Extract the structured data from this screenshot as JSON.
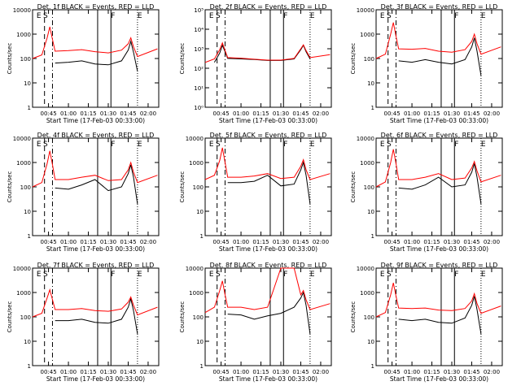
{
  "common": {
    "x_tick_labels": [
      "00:45",
      "01:00",
      "01:15",
      "01:30",
      "01:45",
      "02:00"
    ],
    "xlabel": "Start Time (17-Feb-03 00:33:00)",
    "ylabel": "Counts/sec",
    "series_colors": {
      "events": "#000000",
      "lld": "#ff0000"
    },
    "marker_labels": [
      "E",
      "S",
      "F",
      "E"
    ]
  },
  "chart_data": [
    {
      "type": "line",
      "title": "Det. 1f BLACK = Events, RED = LLD",
      "y_scale": "log",
      "ylim": [
        1,
        10000
      ],
      "y_tick_labels": [
        "1",
        "10",
        "100",
        "1000",
        "10000"
      ],
      "xlim": [
        "00:33",
        "02:08"
      ],
      "series": [
        {
          "x": [
            "00:33",
            "00:40",
            "00:44",
            "00:46",
            "00:48",
            "00:50",
            "01:00",
            "01:10",
            "01:20",
            "01:30",
            "01:40",
            "01:45",
            "01:47",
            "01:49",
            "01:52",
            "02:07"
          ],
          "values": [
            null,
            null,
            null,
            null,
            null,
            65,
            70,
            80,
            60,
            55,
            80,
            220,
            500,
            180,
            30,
            null
          ]
        },
        {
          "x": [
            "00:33",
            "00:40",
            "00:44",
            "00:46",
            "00:48",
            "00:50",
            "01:00",
            "01:10",
            "01:20",
            "01:30",
            "01:40",
            "01:45",
            "01:47",
            "01:49",
            "01:52",
            "02:07"
          ],
          "values": [
            100,
            140,
            700,
            2000,
            600,
            200,
            210,
            230,
            190,
            170,
            220,
            400,
            700,
            300,
            120,
            250
          ]
        }
      ]
    },
    {
      "type": "line",
      "title": "Det. 2f BLACK = Events, RED = LLD",
      "y_scale": "log",
      "ylim": [
        1,
        100000
      ],
      "y_tick_labels": [
        "10⁰",
        "10¹",
        "10²",
        "10³",
        "10⁴",
        "10⁵"
      ],
      "xlim": [
        "00:33",
        "02:08"
      ],
      "series": [
        {
          "x": [
            "00:33",
            "00:40",
            "00:44",
            "00:46",
            "00:48",
            "00:50",
            "01:00",
            "01:10",
            "01:20",
            "01:30",
            "01:40",
            "01:45",
            "01:47",
            "01:49",
            "01:52",
            "02:07"
          ],
          "values": [
            null,
            200,
            600,
            1500,
            700,
            320,
            300,
            280,
            250,
            250,
            300,
            900,
            1500,
            700,
            300,
            null
          ]
        },
        {
          "x": [
            "00:33",
            "00:40",
            "00:44",
            "00:46",
            "00:48",
            "00:50",
            "01:00",
            "01:10",
            "01:20",
            "01:30",
            "01:40",
            "01:45",
            "01:47",
            "01:49",
            "01:52",
            "02:07"
          ],
          "values": [
            200,
            300,
            900,
            2000,
            800,
            350,
            330,
            290,
            260,
            260,
            320,
            1000,
            1600,
            800,
            350,
            500
          ]
        }
      ]
    },
    {
      "type": "line",
      "title": "Det. 3f BLACK = Events, RED = LLD",
      "y_scale": "log",
      "ylim": [
        1,
        10000
      ],
      "y_tick_labels": [
        "1",
        "10",
        "100",
        "1000",
        "10000"
      ],
      "xlim": [
        "00:33",
        "02:08"
      ],
      "series": [
        {
          "x": [
            "00:33",
            "00:40",
            "00:44",
            "00:46",
            "00:48",
            "00:50",
            "01:00",
            "01:10",
            "01:20",
            "01:30",
            "01:40",
            "01:45",
            "01:47",
            "01:49",
            "01:52",
            "02:07"
          ],
          "values": [
            null,
            null,
            null,
            null,
            null,
            80,
            70,
            90,
            70,
            60,
            90,
            300,
            700,
            200,
            20,
            null
          ]
        },
        {
          "x": [
            "00:33",
            "00:40",
            "00:44",
            "00:46",
            "00:48",
            "00:50",
            "01:00",
            "01:10",
            "01:20",
            "01:30",
            "01:40",
            "01:45",
            "01:47",
            "01:49",
            "01:52",
            "02:07"
          ],
          "values": [
            100,
            150,
            1000,
            3000,
            800,
            250,
            240,
            260,
            200,
            180,
            230,
            500,
            1000,
            400,
            150,
            300
          ]
        }
      ]
    },
    {
      "type": "line",
      "title": "Det. 4f BLACK = Events, RED = LLD",
      "y_scale": "log",
      "ylim": [
        1,
        10000
      ],
      "y_tick_labels": [
        "1",
        "10",
        "100",
        "1000",
        "10000"
      ],
      "xlim": [
        "00:33",
        "02:08"
      ],
      "series": [
        {
          "x": [
            "00:33",
            "00:40",
            "00:44",
            "00:46",
            "00:48",
            "00:50",
            "01:00",
            "01:10",
            "01:20",
            "01:30",
            "01:40",
            "01:45",
            "01:47",
            "01:49",
            "01:52",
            "02:07"
          ],
          "values": [
            null,
            null,
            null,
            null,
            null,
            90,
            80,
            120,
            200,
            70,
            100,
            350,
            800,
            250,
            20,
            null
          ]
        },
        {
          "x": [
            "00:33",
            "00:40",
            "00:44",
            "00:46",
            "00:48",
            "00:50",
            "01:00",
            "01:10",
            "01:20",
            "01:30",
            "01:40",
            "01:45",
            "01:47",
            "01:49",
            "01:52",
            "02:07"
          ],
          "values": [
            100,
            150,
            900,
            3000,
            800,
            200,
            200,
            250,
            300,
            180,
            200,
            500,
            1000,
            400,
            150,
            300
          ]
        }
      ]
    },
    {
      "type": "line",
      "title": "Det. 5f BLACK = Events, RED = LLD",
      "y_scale": "log",
      "ylim": [
        1,
        10000
      ],
      "y_tick_labels": [
        "1",
        "10",
        "100",
        "1000",
        "10000"
      ],
      "xlim": [
        "00:33",
        "02:08"
      ],
      "series": [
        {
          "x": [
            "00:33",
            "00:40",
            "00:44",
            "00:46",
            "00:48",
            "00:50",
            "01:00",
            "01:10",
            "01:20",
            "01:30",
            "01:40",
            "01:45",
            "01:47",
            "01:49",
            "01:52",
            "02:07"
          ],
          "values": [
            null,
            null,
            null,
            null,
            null,
            150,
            150,
            170,
            300,
            110,
            130,
            500,
            1000,
            300,
            20,
            null
          ]
        },
        {
          "x": [
            "00:33",
            "00:40",
            "00:44",
            "00:46",
            "00:48",
            "00:50",
            "01:00",
            "01:10",
            "01:20",
            "01:30",
            "01:40",
            "01:45",
            "01:47",
            "01:49",
            "01:52",
            "02:07"
          ],
          "values": [
            200,
            300,
            1200,
            4000,
            1000,
            250,
            250,
            280,
            350,
            220,
            250,
            700,
            1300,
            500,
            200,
            350
          ]
        }
      ]
    },
    {
      "type": "line",
      "title": "Det. 6f BLACK = Events, RED = LLD",
      "y_scale": "log",
      "ylim": [
        1,
        10000
      ],
      "y_tick_labels": [
        "1",
        "10",
        "100",
        "1000",
        "10000"
      ],
      "xlim": [
        "00:33",
        "02:08"
      ],
      "series": [
        {
          "x": [
            "00:33",
            "00:40",
            "00:44",
            "00:46",
            "00:48",
            "00:50",
            "01:00",
            "01:10",
            "01:20",
            "01:30",
            "01:40",
            "01:45",
            "01:47",
            "01:49",
            "01:52",
            "02:07"
          ],
          "values": [
            null,
            null,
            null,
            null,
            null,
            90,
            80,
            120,
            250,
            100,
            120,
            400,
            900,
            250,
            20,
            null
          ]
        },
        {
          "x": [
            "00:33",
            "00:40",
            "00:44",
            "00:46",
            "00:48",
            "00:50",
            "01:00",
            "01:10",
            "01:20",
            "01:30",
            "01:40",
            "01:45",
            "01:47",
            "01:49",
            "01:52",
            "02:07"
          ],
          "values": [
            100,
            160,
            1000,
            3500,
            900,
            200,
            200,
            250,
            350,
            200,
            230,
            600,
            1100,
            450,
            160,
            300
          ]
        }
      ]
    },
    {
      "type": "line",
      "title": "Det. 7f BLACK = Events, RED = LLD",
      "y_scale": "log",
      "ylim": [
        1,
        10000
      ],
      "y_tick_labels": [
        "1",
        "10",
        "100",
        "1000",
        "10000"
      ],
      "xlim": [
        "00:33",
        "02:08"
      ],
      "series": [
        {
          "x": [
            "00:33",
            "00:40",
            "00:44",
            "00:46",
            "00:48",
            "00:50",
            "01:00",
            "01:10",
            "01:20",
            "01:30",
            "01:40",
            "01:45",
            "01:47",
            "01:49",
            "01:52",
            "02:07"
          ],
          "values": [
            null,
            null,
            null,
            null,
            null,
            70,
            70,
            80,
            60,
            55,
            80,
            250,
            550,
            180,
            20,
            null
          ]
        },
        {
          "x": [
            "00:33",
            "00:40",
            "00:44",
            "00:46",
            "00:48",
            "00:50",
            "01:00",
            "01:10",
            "01:20",
            "01:30",
            "01:40",
            "01:45",
            "01:47",
            "01:49",
            "01:52",
            "02:07"
          ],
          "values": [
            100,
            140,
            600,
            1300,
            500,
            200,
            200,
            220,
            180,
            170,
            210,
            400,
            650,
            300,
            120,
            250
          ]
        }
      ]
    },
    {
      "type": "line",
      "title": "Det. 8f BLACK = Events, RED = LLD",
      "y_scale": "log",
      "ylim": [
        1,
        10000
      ],
      "y_tick_labels": [
        "1",
        "10",
        "100",
        "1000",
        "10000"
      ],
      "xlim": [
        "00:33",
        "02:08"
      ],
      "series": [
        {
          "x": [
            "00:33",
            "00:40",
            "00:44",
            "00:46",
            "00:48",
            "00:50",
            "01:00",
            "01:10",
            "01:20",
            "01:30",
            "01:40",
            "01:45",
            "01:47",
            "01:49",
            "01:52",
            "02:07"
          ],
          "values": [
            null,
            null,
            null,
            null,
            null,
            130,
            120,
            80,
            110,
            140,
            250,
            600,
            1000,
            300,
            20,
            null
          ]
        },
        {
          "x": [
            "00:33",
            "00:40",
            "00:44",
            "00:46",
            "00:48",
            "00:50",
            "01:00",
            "01:10",
            "01:20",
            "01:30",
            "01:40",
            "01:45",
            "01:47",
            "01:49",
            "01:52",
            "02:07"
          ],
          "values": [
            150,
            250,
            1200,
            3000,
            800,
            250,
            250,
            200,
            250,
            10000,
            10000,
            800,
            1200,
            500,
            200,
            350
          ]
        }
      ]
    },
    {
      "type": "line",
      "title": "Det. 9f BLACK = Events, RED = LLD",
      "y_scale": "log",
      "ylim": [
        1,
        10000
      ],
      "y_tick_labels": [
        "1",
        "10",
        "100",
        "1000",
        "10000"
      ],
      "xlim": [
        "00:33",
        "02:08"
      ],
      "series": [
        {
          "x": [
            "00:33",
            "00:40",
            "00:44",
            "00:46",
            "00:48",
            "00:50",
            "01:00",
            "01:10",
            "01:20",
            "01:30",
            "01:40",
            "01:45",
            "01:47",
            "01:49",
            "01:52",
            "02:07"
          ],
          "values": [
            null,
            null,
            null,
            null,
            null,
            80,
            70,
            80,
            60,
            55,
            90,
            300,
            700,
            200,
            20,
            null
          ]
        },
        {
          "x": [
            "00:33",
            "00:40",
            "00:44",
            "00:46",
            "00:48",
            "00:50",
            "01:00",
            "01:10",
            "01:20",
            "01:30",
            "01:40",
            "01:45",
            "01:47",
            "01:49",
            "01:52",
            "02:07"
          ],
          "values": [
            100,
            150,
            800,
            2500,
            700,
            230,
            220,
            230,
            190,
            180,
            220,
            450,
            900,
            350,
            140,
            280
          ]
        }
      ]
    }
  ]
}
